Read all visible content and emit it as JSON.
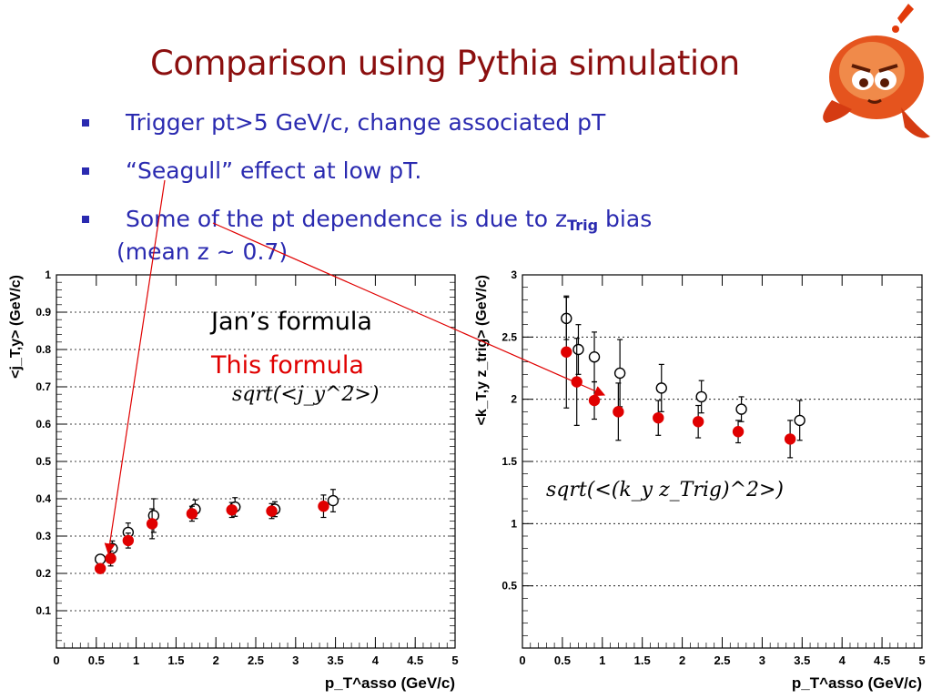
{
  "slide": {
    "title": "Comparison using Pythia simulation",
    "bullets": [
      {
        "text": "Trigger pt>5 GeV/c,  change associated pT"
      },
      {
        "text": "“Seagull” effect at low pT."
      },
      {
        "text_pre": "Some of the pt dependence is due to z",
        "sub": "Trig",
        "text_post": " bias"
      }
    ],
    "bullet_continuation": "(mean z ~ 0.7)",
    "legend": {
      "jan_label": "Jan’s formula",
      "this_label": "This formula",
      "jan_color": "#000000",
      "this_color": "#e00000"
    },
    "colors": {
      "title": "#8b0f0f",
      "bullet": "#2a2ab0",
      "arrow": "#e00000"
    }
  },
  "chart_data": [
    {
      "type": "scatter",
      "ylabel": "<j_T,y> (GeV/c)",
      "xlabel": "p_T^asso (GeV/c)",
      "xlim": [
        0,
        5
      ],
      "ylim": [
        0,
        1
      ],
      "x_ticks": [
        "0",
        "0.5",
        "1",
        "1.5",
        "2",
        "2.5",
        "3",
        "3.5",
        "4",
        "4.5",
        "5"
      ],
      "y_ticks": [
        "0.1",
        "0.2",
        "0.3",
        "0.4",
        "0.5",
        "0.6",
        "0.7",
        "0.8",
        "0.9",
        "1"
      ],
      "grid": "horizontal dashed",
      "formula": "sqrt(<j_y^2>)",
      "series": [
        {
          "name": "Jan’s formula",
          "marker": "open circle",
          "x": [
            0.55,
            0.7,
            0.9,
            1.22,
            1.74,
            2.24,
            2.74,
            3.47
          ],
          "y": [
            0.238,
            0.267,
            0.31,
            0.355,
            0.372,
            0.378,
            0.372,
            0.395
          ],
          "err": [
            0.012,
            0.02,
            0.025,
            0.045,
            0.025,
            0.025,
            0.02,
            0.03
          ]
        },
        {
          "name": "This formula",
          "marker": "filled circle",
          "x": [
            0.55,
            0.68,
            0.9,
            1.2,
            1.7,
            2.2,
            2.7,
            3.35
          ],
          "y": [
            0.213,
            0.24,
            0.288,
            0.333,
            0.36,
            0.37,
            0.367,
            0.38
          ],
          "err": [
            0.012,
            0.02,
            0.02,
            0.04,
            0.02,
            0.02,
            0.02,
            0.03
          ]
        }
      ]
    },
    {
      "type": "scatter",
      "ylabel": "<k_T,y z_trig> (GeV/c)",
      "xlabel": "p_T^asso (GeV/c)",
      "xlim": [
        0,
        5
      ],
      "ylim": [
        0,
        3
      ],
      "x_ticks": [
        "0",
        "0.5",
        "1",
        "1.5",
        "2",
        "2.5",
        "3",
        "3.5",
        "4",
        "4.5",
        "5"
      ],
      "y_ticks": [
        "0.5",
        "1",
        "1.5",
        "2",
        "2.5",
        "3"
      ],
      "grid": "horizontal dashed",
      "formula": "sqrt(<(k_y z_Trig)^2>)",
      "series": [
        {
          "name": "Jan’s formula",
          "marker": "open circle",
          "x": [
            0.55,
            0.7,
            0.9,
            1.22,
            1.74,
            2.24,
            2.74,
            3.47
          ],
          "y": [
            2.65,
            2.4,
            2.34,
            2.21,
            2.09,
            2.02,
            1.92,
            1.83
          ],
          "err": [
            0.17,
            0.2,
            0.2,
            0.27,
            0.19,
            0.13,
            0.1,
            0.16
          ]
        },
        {
          "name": "This formula",
          "marker": "filled circle",
          "x": [
            0.55,
            0.68,
            0.9,
            1.2,
            1.7,
            2.2,
            2.7,
            3.35
          ],
          "y": [
            2.38,
            2.14,
            1.99,
            1.9,
            1.85,
            1.82,
            1.74,
            1.68
          ],
          "err": [
            0.45,
            0.35,
            0.15,
            0.23,
            0.14,
            0.13,
            0.09,
            0.15
          ]
        }
      ]
    }
  ]
}
